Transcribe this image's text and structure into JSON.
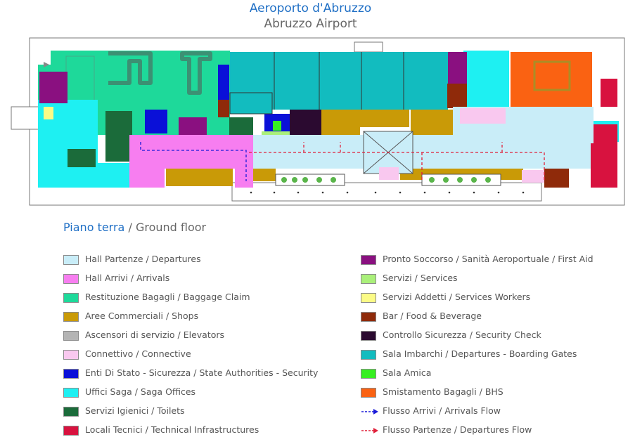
{
  "title": {
    "italian": "Aeroporto d'Abruzzo",
    "english": "Abruzzo Airport"
  },
  "floor": {
    "italian": "Piano terra",
    "separator": "/",
    "english": "Ground floor"
  },
  "legend_left": [
    {
      "label": "Hall Partenze / Departures",
      "color": "#c9edf8"
    },
    {
      "label": "Hall Arrivi / Arrivals",
      "color": "#f77ef0"
    },
    {
      "label": "Restituzione Bagagli / Baggage Claim",
      "color": "#1ed99a"
    },
    {
      "label": "Aree Commerciali / Shops",
      "color": "#c99a07"
    },
    {
      "label": "Ascensori di servizio / Elevators",
      "color": "#b4b4b4"
    },
    {
      "label": "Connettivo / Connective",
      "color": "#f9c8ef"
    },
    {
      "label": "Enti Di Stato - Sicurezza / State Authorities - Security",
      "color": "#0a10d8"
    },
    {
      "label": "Uffici Saga / Saga Offices",
      "color": "#1ef0f2"
    },
    {
      "label": "Servizi Igienici / Toilets",
      "color": "#1b6b3a"
    },
    {
      "label": "Locali Tecnici / Technical Infrastructures",
      "color": "#d8123f"
    }
  ],
  "legend_right": [
    {
      "label": "Pronto Soccorso / Sanità Aeroportuale / First Aid",
      "color": "#8a1080"
    },
    {
      "label": "Servizi / Services",
      "color": "#aaf07a"
    },
    {
      "label": "Servizi Addetti / Services Workers",
      "color": "#fbfb86"
    },
    {
      "label": "Bar / Food & Beverage",
      "color": "#8f2a0a"
    },
    {
      "label": "Controllo Sicurezza / Security Check",
      "color": "#2b0a30"
    },
    {
      "label": "Sala Imbarchi / Departures - Boarding Gates",
      "color": "#12bcbf"
    },
    {
      "label": "Sala Amica",
      "color": "#36f020"
    },
    {
      "label": "Smistamento Bagagli / BHS",
      "color": "#fa6212"
    }
  ],
  "flows": [
    {
      "label": "Flusso Arrivi / Arrivals Flow",
      "color": "#1a1ad8"
    },
    {
      "label": "Flusso Partenze / Departures Flow",
      "color": "#e0203a"
    }
  ]
}
